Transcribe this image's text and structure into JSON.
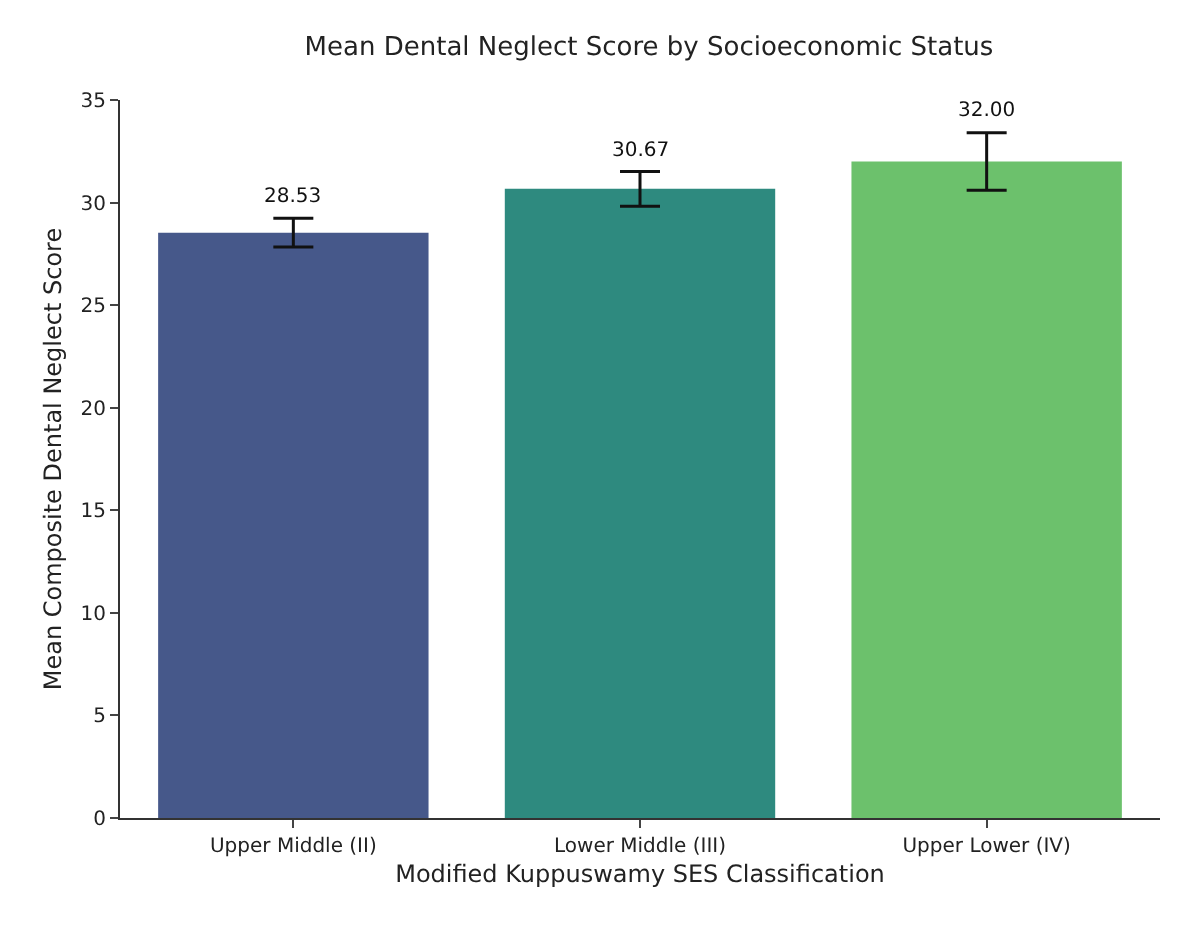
{
  "chart_data": {
    "type": "bar",
    "title": "Mean Dental Neglect Score by Socioeconomic Status",
    "xlabel": "Modified Kuppuswamy SES Classification",
    "ylabel": "Mean Composite Dental Neglect Score",
    "categories": [
      "Upper Middle (II)",
      "Lower Middle (III)",
      "Upper Lower (IV)"
    ],
    "values": [
      28.53,
      30.67,
      32.0
    ],
    "errors": [
      0.7,
      0.85,
      1.4
    ],
    "value_labels": [
      "28.53",
      "30.67",
      "32.00"
    ],
    "colors": [
      "#46588a",
      "#2e8a7f",
      "#6cc16c"
    ],
    "ylim": [
      0,
      35
    ],
    "yticks": [
      0,
      5,
      10,
      15,
      20,
      25,
      30,
      35
    ],
    "grid": false
  }
}
